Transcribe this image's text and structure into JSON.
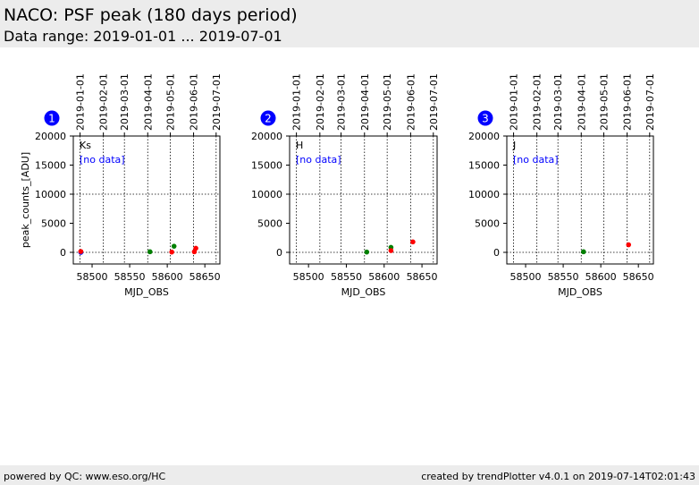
{
  "header": {
    "title": "NACO: PSF peak (180 days period)",
    "subtitle": "Data range: 2019-01-01 ... 2019-07-01"
  },
  "footer": {
    "left": "powered by QC: www.eso.org/HC",
    "right": "created by trendPlotter v4.0.1 on 2019-07-14T02:01:43"
  },
  "colors": {
    "background": "#ffffff",
    "band": "#ececec",
    "badge": "#0000ff",
    "no_data": "#0000ff",
    "green": "#008000",
    "red": "#ff0000",
    "blue": "#0000ff"
  },
  "chart_data": [
    {
      "type": "scatter",
      "badge": "1",
      "band_label": "Ks",
      "no_data_label": "[no data]",
      "xlabel": "MJD_OBS",
      "ylabel": "peak_counts_[ADU]",
      "xlim": [
        58475,
        58670
      ],
      "ylim": [
        -2000,
        20000
      ],
      "xticks": [
        58500,
        58550,
        58600,
        58650
      ],
      "yticks": [
        0,
        5000,
        10000,
        15000,
        20000
      ],
      "hline": 10000,
      "top_ticks": [
        {
          "x": 58484,
          "label": "2019-01-01"
        },
        {
          "x": 58515,
          "label": "2019-02-01"
        },
        {
          "x": 58543,
          "label": "2019-03-01"
        },
        {
          "x": 58574,
          "label": "2019-04-01"
        },
        {
          "x": 58604,
          "label": "2019-05-01"
        },
        {
          "x": 58635,
          "label": "2019-06-01"
        },
        {
          "x": 58665,
          "label": "2019-07-01"
        }
      ],
      "series": [
        {
          "color": "blue",
          "points": [
            [
              58485,
              0
            ]
          ]
        },
        {
          "color": "red",
          "points": [
            [
              58485,
              150
            ],
            [
              58606,
              50
            ],
            [
              58636,
              100
            ],
            [
              58638,
              700
            ]
          ]
        },
        {
          "color": "green",
          "points": [
            [
              58577,
              100
            ],
            [
              58609,
              1050
            ]
          ]
        }
      ]
    },
    {
      "type": "scatter",
      "badge": "2",
      "band_label": "H",
      "no_data_label": "[no data]",
      "xlabel": "MJD_OBS",
      "ylabel": "",
      "xlim": [
        58475,
        58670
      ],
      "ylim": [
        -2000,
        20000
      ],
      "xticks": [
        58500,
        58550,
        58600,
        58650
      ],
      "yticks": [
        0,
        5000,
        10000,
        15000,
        20000
      ],
      "hline": 10000,
      "top_ticks": [
        {
          "x": 58484,
          "label": "2019-01-01"
        },
        {
          "x": 58515,
          "label": "2019-02-01"
        },
        {
          "x": 58543,
          "label": "2019-03-01"
        },
        {
          "x": 58574,
          "label": "2019-04-01"
        },
        {
          "x": 58604,
          "label": "2019-05-01"
        },
        {
          "x": 58635,
          "label": "2019-06-01"
        },
        {
          "x": 58665,
          "label": "2019-07-01"
        }
      ],
      "series": [
        {
          "color": "green",
          "points": [
            [
              58577,
              50
            ],
            [
              58609,
              850
            ]
          ]
        },
        {
          "color": "red",
          "points": [
            [
              58609,
              300
            ],
            [
              58638,
              1800
            ]
          ]
        }
      ]
    },
    {
      "type": "scatter",
      "badge": "3",
      "band_label": "J",
      "no_data_label": "[no data]",
      "xlabel": "MJD_OBS",
      "ylabel": "",
      "xlim": [
        58475,
        58670
      ],
      "ylim": [
        -2000,
        20000
      ],
      "xticks": [
        58500,
        58550,
        58600,
        58650
      ],
      "yticks": [
        0,
        5000,
        10000,
        15000,
        20000
      ],
      "hline": 10000,
      "top_ticks": [
        {
          "x": 58484,
          "label": "2019-01-01"
        },
        {
          "x": 58515,
          "label": "2019-02-01"
        },
        {
          "x": 58543,
          "label": "2019-03-01"
        },
        {
          "x": 58574,
          "label": "2019-04-01"
        },
        {
          "x": 58604,
          "label": "2019-05-01"
        },
        {
          "x": 58635,
          "label": "2019-06-01"
        },
        {
          "x": 58665,
          "label": "2019-07-01"
        }
      ],
      "series": [
        {
          "color": "green",
          "points": [
            [
              58577,
              100
            ]
          ]
        },
        {
          "color": "red",
          "points": [
            [
              58637,
              1300
            ]
          ]
        }
      ]
    }
  ]
}
